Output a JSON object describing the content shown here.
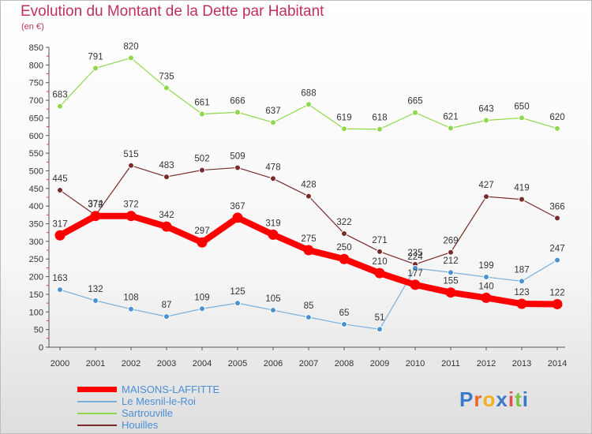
{
  "title": "Evolution du Montant de la Dette par Habitant",
  "subtitle": "(en €)",
  "logo": {
    "text": "Proxiti",
    "letters": [
      {
        "ch": "P",
        "color": "#3a78c8"
      },
      {
        "ch": "r",
        "color": "#e86a2a"
      },
      {
        "ch": "o",
        "color": "#f2b01e"
      },
      {
        "ch": "x",
        "color": "#3a78c8"
      },
      {
        "ch": "i",
        "color": "#e05050"
      },
      {
        "ch": "t",
        "color": "#7cc244"
      },
      {
        "ch": "i",
        "color": "#3a78c8"
      }
    ]
  },
  "chart_data": {
    "type": "line",
    "x": [
      "2000",
      "2001",
      "2002",
      "2003",
      "2004",
      "2005",
      "2006",
      "2007",
      "2008",
      "2009",
      "2010",
      "2011",
      "2012",
      "2013",
      "2014"
    ],
    "ylim": [
      0,
      850
    ],
    "yticks": [
      0,
      50,
      100,
      150,
      200,
      250,
      300,
      350,
      400,
      450,
      500,
      550,
      600,
      650,
      700,
      750,
      800,
      850
    ],
    "grid": false,
    "legend_position": "bottom-left",
    "series": [
      {
        "name": "Sartrouville",
        "color": "#8fd84a",
        "markerColor": "#8fd84a",
        "width": 1.2,
        "values": [
          683,
          791,
          820,
          735,
          661,
          666,
          637,
          688,
          619,
          618,
          665,
          621,
          643,
          650,
          620
        ]
      },
      {
        "name": "Houilles",
        "color": "#7a2a2a",
        "markerColor": "#7a2a2a",
        "width": 1.2,
        "values": [
          445,
          374,
          515,
          483,
          502,
          509,
          478,
          428,
          322,
          271,
          235,
          269,
          427,
          419,
          366
        ]
      },
      {
        "name": "Le Mesnil-le-Roi",
        "color": "#7ab0dc",
        "markerColor": "#4a92d2",
        "width": 1.2,
        "values": [
          163,
          132,
          108,
          87,
          109,
          125,
          105,
          85,
          65,
          51,
          224,
          212,
          199,
          187,
          247
        ]
      },
      {
        "name": "MAISONS-LAFFITTE",
        "color": "#ff0000",
        "markerColor": "#ff0000",
        "width": 8,
        "values": [
          317,
          372,
          372,
          342,
          297,
          367,
          319,
          275,
          250,
          210,
          177,
          155,
          140,
          123,
          122
        ]
      }
    ],
    "legend_order": [
      "MAISONS-LAFFITTE",
      "Le Mesnil-le-Roi",
      "Sartrouville",
      "Houilles"
    ]
  }
}
